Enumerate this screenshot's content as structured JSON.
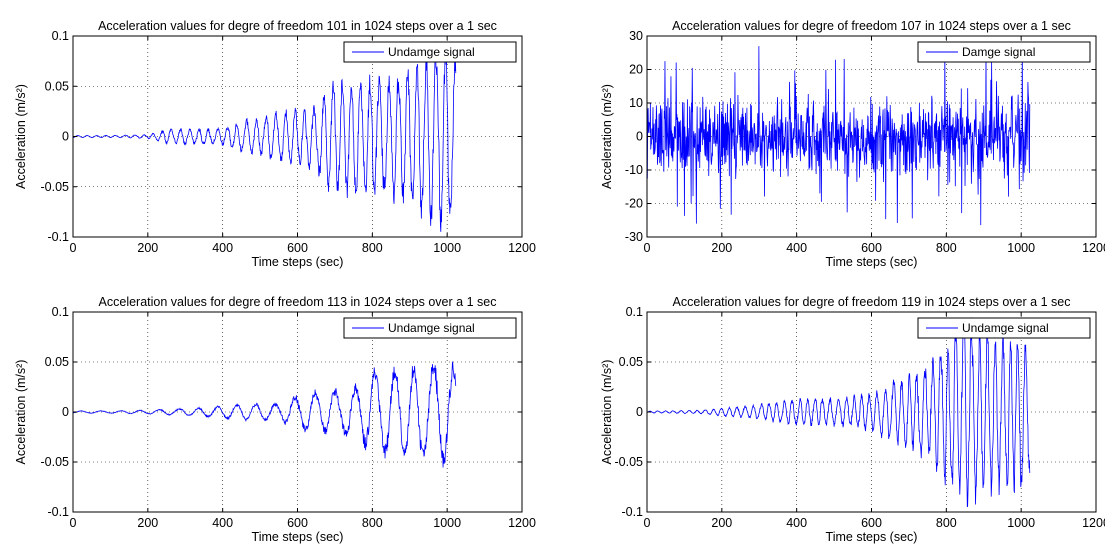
{
  "chart_data": [
    {
      "type": "line",
      "title": "Acceleration values for degre of freedom 101 in 1024 steps over a 1 sec",
      "xlabel": "Time steps (sec)",
      "ylabel": "Acceleration (m/s²)",
      "xlim": [
        0,
        1200
      ],
      "ylim": [
        -0.1,
        0.1
      ],
      "xticks": [
        0,
        200,
        400,
        600,
        800,
        1000,
        1200
      ],
      "yticks": [
        -0.1,
        -0.05,
        0,
        0.05,
        0.1
      ],
      "ytick_labels": [
        "-0.1",
        "-0.05",
        "0",
        "0.05",
        "0.1"
      ],
      "grid": true,
      "legend_position": "top-right",
      "series": [
        {
          "name": "Undamge signal",
          "color": "#0000ff",
          "n_points": 1024,
          "envelope": {
            "x": [
              0,
              100,
              200,
              250,
              300,
              400,
              450,
              500,
              550,
              600,
              650,
              700,
              750,
              800,
              850,
              900,
              950,
              1000,
              1024
            ],
            "amp": [
              0.001,
              0.001,
              0.002,
              0.007,
              0.008,
              0.01,
              0.016,
              0.018,
              0.025,
              0.03,
              0.035,
              0.06,
              0.06,
              0.07,
              0.075,
              0.07,
              0.08,
              0.095,
              0.08
            ]
          },
          "freq": 0.25
        }
      ]
    },
    {
      "type": "line",
      "title": "Acceleration values for degre of freedom 107 in 1024 steps over a 1 sec",
      "xlabel": "Time steps (sec)",
      "ylabel": "Acceleration (m/s²)",
      "xlim": [
        0,
        1200
      ],
      "ylim": [
        -30,
        30
      ],
      "xticks": [
        0,
        200,
        400,
        600,
        800,
        1000,
        1200
      ],
      "yticks": [
        -30,
        -20,
        -10,
        0,
        10,
        20,
        30
      ],
      "ytick_labels": [
        "-30",
        "-20",
        "-10",
        "0",
        "10",
        "20",
        "30"
      ],
      "grid": true,
      "legend_position": "top-right",
      "series": [
        {
          "name": "Damge signal",
          "color": "#0000ff",
          "n_points": 1024,
          "envelope": {
            "x": [
              0,
              1024
            ],
            "amp": [
              8,
              8
            ]
          },
          "freq": 2.2,
          "noise": true
        }
      ]
    },
    {
      "type": "line",
      "title": "Acceleration values for degre of freedom 113 in 1024 steps over a 1 sec",
      "xlabel": "Time steps (sec)",
      "ylabel": "Acceleration (m/s²)",
      "xlim": [
        0,
        1200
      ],
      "ylim": [
        -0.1,
        0.1
      ],
      "xticks": [
        0,
        200,
        400,
        600,
        800,
        1000,
        1200
      ],
      "yticks": [
        -0.1,
        -0.05,
        0,
        0.05,
        0.1
      ],
      "ytick_labels": [
        "-0.1",
        "-0.05",
        "0",
        "0.05",
        "0.1"
      ],
      "grid": true,
      "legend_position": "top-right",
      "series": [
        {
          "name": "Undamge signal",
          "color": "#0000ff",
          "n_points": 1024,
          "envelope": {
            "x": [
              0,
              200,
              250,
              300,
              400,
              500,
              550,
              600,
              650,
              700,
              750,
              800,
              850,
              900,
              950,
              1000,
              1024
            ],
            "amp": [
              0.001,
              0.002,
              0.003,
              0.004,
              0.006,
              0.009,
              0.01,
              0.02,
              0.022,
              0.024,
              0.03,
              0.045,
              0.04,
              0.045,
              0.05,
              0.06,
              0.05
            ]
          },
          "freq": 0.12
        }
      ]
    },
    {
      "type": "line",
      "title": "Acceleration values for degre of freedom 119 in 1024 steps over a 1 sec",
      "xlabel": "Time steps (sec)",
      "ylabel": "Acceleration (m/s²)",
      "xlim": [
        0,
        1200
      ],
      "ylim": [
        -0.1,
        0.1
      ],
      "xticks": [
        0,
        200,
        400,
        600,
        800,
        1000,
        1200
      ],
      "yticks": [
        -0.1,
        -0.05,
        0,
        0.05,
        0.1
      ],
      "ytick_labels": [
        "-0.1",
        "-0.05",
        "0",
        "0.05",
        "0.1"
      ],
      "grid": true,
      "legend_position": "top-right",
      "series": [
        {
          "name": "Undamge signal",
          "color": "#0000ff",
          "n_points": 1024,
          "envelope": {
            "x": [
              0,
              150,
              200,
              300,
              400,
              500,
              600,
              650,
              700,
              750,
              800,
              850,
              900,
              950,
              1000,
              1024
            ],
            "amp": [
              0.001,
              0.002,
              0.004,
              0.008,
              0.012,
              0.016,
              0.02,
              0.03,
              0.045,
              0.05,
              0.07,
              0.085,
              0.085,
              0.09,
              0.085,
              0.07
            ]
          },
          "freq": 0.3
        }
      ]
    }
  ]
}
